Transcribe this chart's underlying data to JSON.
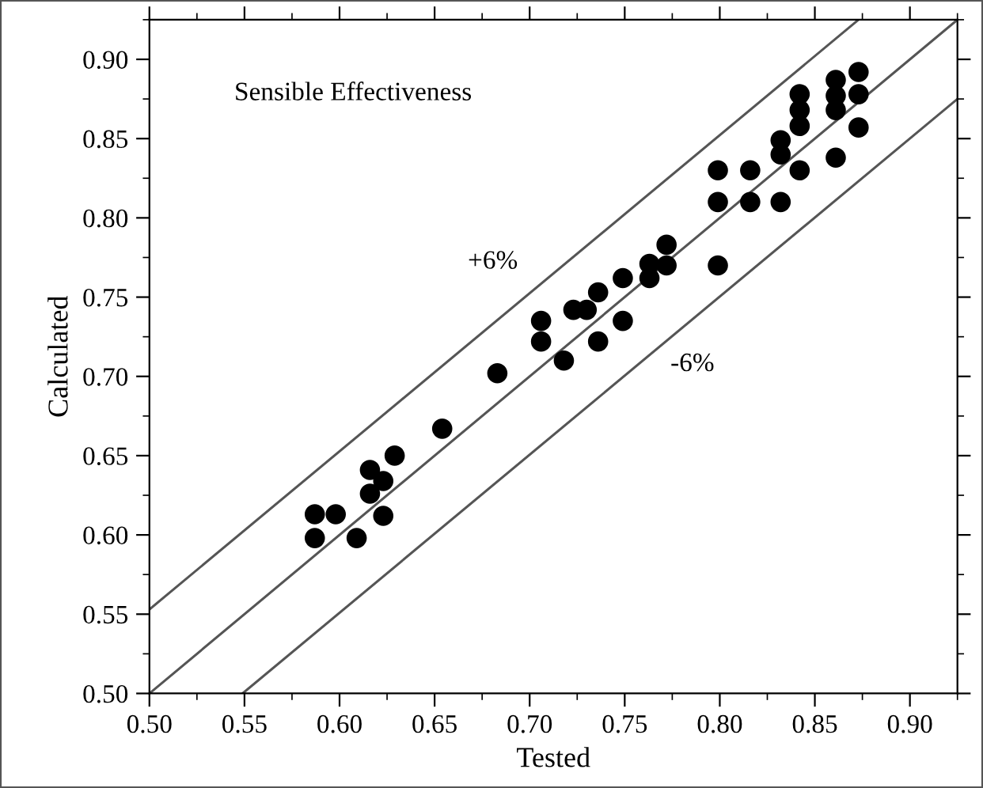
{
  "chart_data": {
    "type": "scatter",
    "xlabel": "Tested",
    "ylabel": "Calculated",
    "annotations": [
      "Sensible Effectiveness",
      "+6%",
      "-6%"
    ],
    "xlim": [
      0.5,
      0.925
    ],
    "ylim": [
      0.5,
      0.925
    ],
    "xticks": [
      {
        "value": 0.5,
        "label": "0.50"
      },
      {
        "value": 0.55,
        "label": "0.55"
      },
      {
        "value": 0.6,
        "label": "0.60"
      },
      {
        "value": 0.65,
        "label": "0.65"
      },
      {
        "value": 0.7,
        "label": "0.70"
      },
      {
        "value": 0.75,
        "label": "0.75"
      },
      {
        "value": 0.8,
        "label": "0.80"
      },
      {
        "value": 0.85,
        "label": "0.85"
      },
      {
        "value": 0.9,
        "label": "0.90"
      }
    ],
    "yticks": [
      {
        "value": 0.5,
        "label": "0.50"
      },
      {
        "value": 0.55,
        "label": "0.55"
      },
      {
        "value": 0.6,
        "label": "0.60"
      },
      {
        "value": 0.65,
        "label": "0.65"
      },
      {
        "value": 0.7,
        "label": "0.70"
      },
      {
        "value": 0.75,
        "label": "0.75"
      },
      {
        "value": 0.8,
        "label": "0.80"
      },
      {
        "value": 0.85,
        "label": "0.85"
      },
      {
        "value": 0.9,
        "label": "0.90"
      }
    ],
    "grid": false,
    "series": [
      {
        "color": "#000000",
        "marker": "circle",
        "x": [
          0.587,
          0.587,
          0.598,
          0.609,
          0.616,
          0.616,
          0.623,
          0.623,
          0.629,
          0.654,
          0.683,
          0.706,
          0.706,
          0.718,
          0.723,
          0.73,
          0.736,
          0.736,
          0.749,
          0.749,
          0.763,
          0.763,
          0.772,
          0.772,
          0.799,
          0.799,
          0.799,
          0.816,
          0.816,
          0.832,
          0.832,
          0.832,
          0.842,
          0.842,
          0.842,
          0.842,
          0.861,
          0.861,
          0.861,
          0.861,
          0.873,
          0.873,
          0.873
        ],
        "values": [
          0.613,
          0.598,
          0.613,
          0.598,
          0.641,
          0.626,
          0.634,
          0.612,
          0.65,
          0.667,
          0.702,
          0.735,
          0.722,
          0.71,
          0.742,
          0.742,
          0.753,
          0.722,
          0.762,
          0.735,
          0.762,
          0.771,
          0.77,
          0.783,
          0.77,
          0.81,
          0.83,
          0.81,
          0.83,
          0.81,
          0.84,
          0.849,
          0.83,
          0.858,
          0.868,
          0.878,
          0.838,
          0.868,
          0.877,
          0.887,
          0.892,
          0.878,
          0.857
        ]
      },
      {
        "type": "line",
        "color": "#555555",
        "line_style": "solid",
        "x": [
          0.5,
          0.873
        ],
        "values": [
          0.553,
          0.925
        ]
      },
      {
        "type": "line",
        "color": "#555555",
        "line_style": "solid",
        "x": [
          0.5,
          0.925
        ],
        "values": [
          0.5,
          0.925
        ]
      },
      {
        "type": "line",
        "color": "#555555",
        "line_style": "solid",
        "x": [
          0.549,
          0.925
        ],
        "values": [
          0.5,
          0.875
        ]
      }
    ]
  }
}
